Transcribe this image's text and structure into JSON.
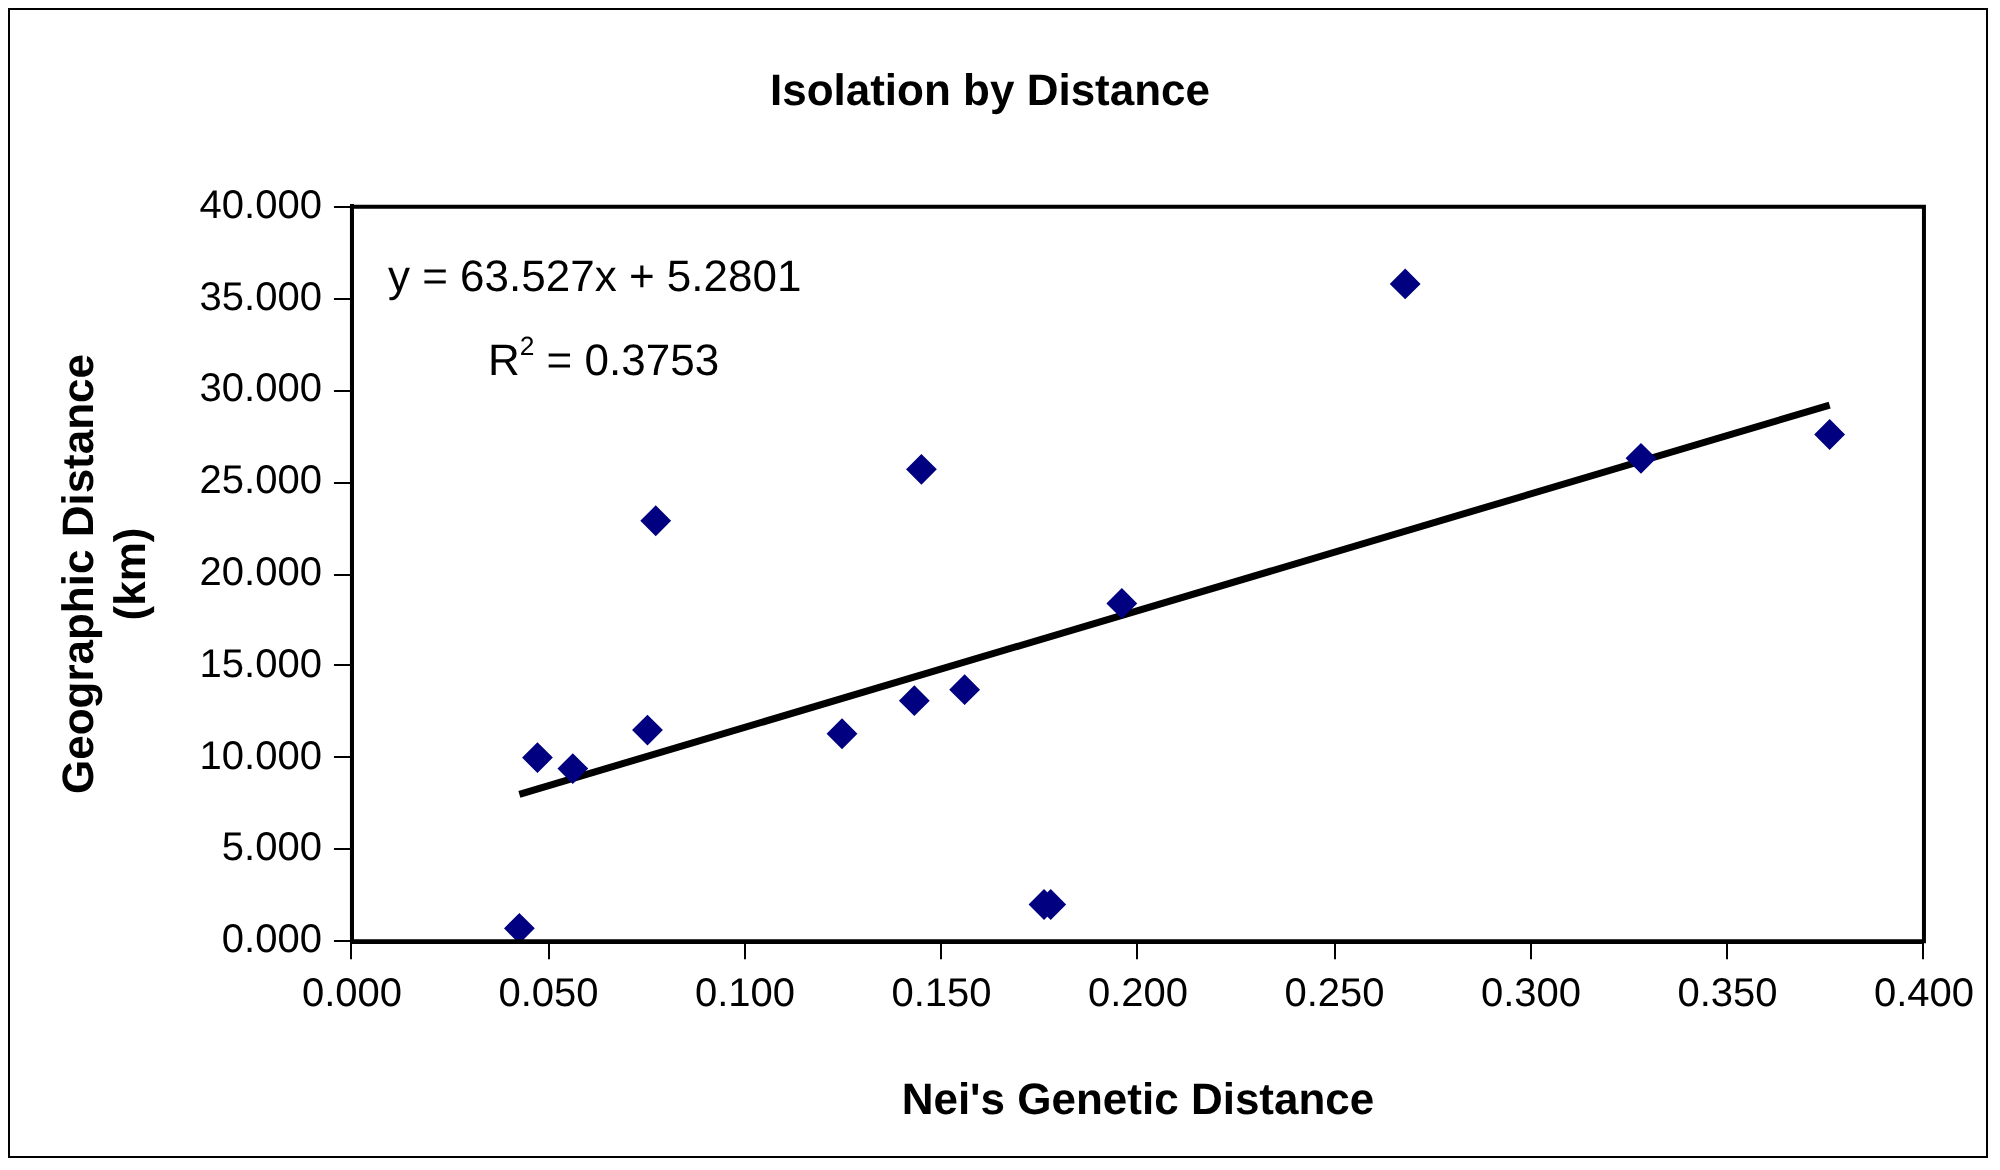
{
  "chart_data": {
    "type": "scatter",
    "title": "Isolation by Distance",
    "xlabel": "Nei's Genetic Distance",
    "ylabel": "Geographic Distance (km)",
    "annotations": [
      "y = 63.527x + 5.2801",
      "R$^{2}$ = 0.3753"
    ],
    "xlim": [
      0,
      0.4
    ],
    "ylim": [
      0,
      40
    ],
    "xticks": [
      {
        "value": 0,
        "label": "0.000"
      },
      {
        "value": 0.05,
        "label": "0.050"
      },
      {
        "value": 0.1,
        "label": "0.100"
      },
      {
        "value": 0.15,
        "label": "0.150"
      },
      {
        "value": 0.2,
        "label": "0.200"
      },
      {
        "value": 0.25,
        "label": "0.250"
      },
      {
        "value": 0.3,
        "label": "0.300"
      },
      {
        "value": 0.35,
        "label": "0.350"
      },
      {
        "value": 0.4,
        "label": "0.400"
      }
    ],
    "yticks": [
      {
        "value": 0,
        "label": "0.000"
      },
      {
        "value": 5,
        "label": "5.000"
      },
      {
        "value": 10,
        "label": "10.000"
      },
      {
        "value": 15,
        "label": "15.000"
      },
      {
        "value": 20,
        "label": "20.000"
      },
      {
        "value": 25,
        "label": "25.000"
      },
      {
        "value": 30,
        "label": "30.000"
      },
      {
        "value": 35,
        "label": "35.000"
      },
      {
        "value": 40,
        "label": "40.000"
      }
    ],
    "legend": false,
    "series": [
      {
        "color": "#000080",
        "marker": "diamond",
        "x": [
          0.0426,
          0.0472,
          0.0562,
          0.0752,
          0.0773,
          0.1247,
          0.1431,
          0.1449,
          0.1559,
          0.1761,
          0.1778,
          0.1959,
          0.268,
          0.328,
          0.376
        ],
        "values": [
          0.7,
          10.0,
          9.4,
          11.5,
          22.9,
          11.3,
          13.1,
          25.7,
          13.7,
          2.0,
          2.0,
          18.4,
          35.8,
          26.3,
          27.6
        ]
      },
      {
        "type": "line",
        "color": "#000000",
        "marker": "none",
        "line_style": "solid",
        "x": [
          0.0426,
          0.376
        ],
        "values": [
          8.0,
          29.2
        ]
      }
    ]
  }
}
